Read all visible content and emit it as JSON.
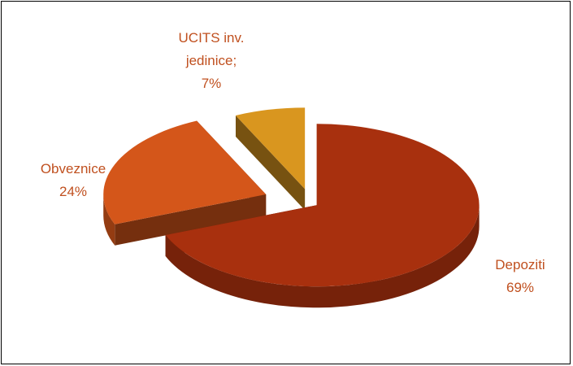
{
  "chart_data": {
    "type": "pie",
    "categories": [
      "Depoziti",
      "Obveznice",
      "UCITS inv. jedinice;"
    ],
    "values": [
      69,
      24,
      7
    ],
    "value_labels": [
      "69%",
      "24%",
      "7%"
    ],
    "colors": [
      "#a8300e",
      "#d4561a",
      "#d9961f"
    ]
  }
}
